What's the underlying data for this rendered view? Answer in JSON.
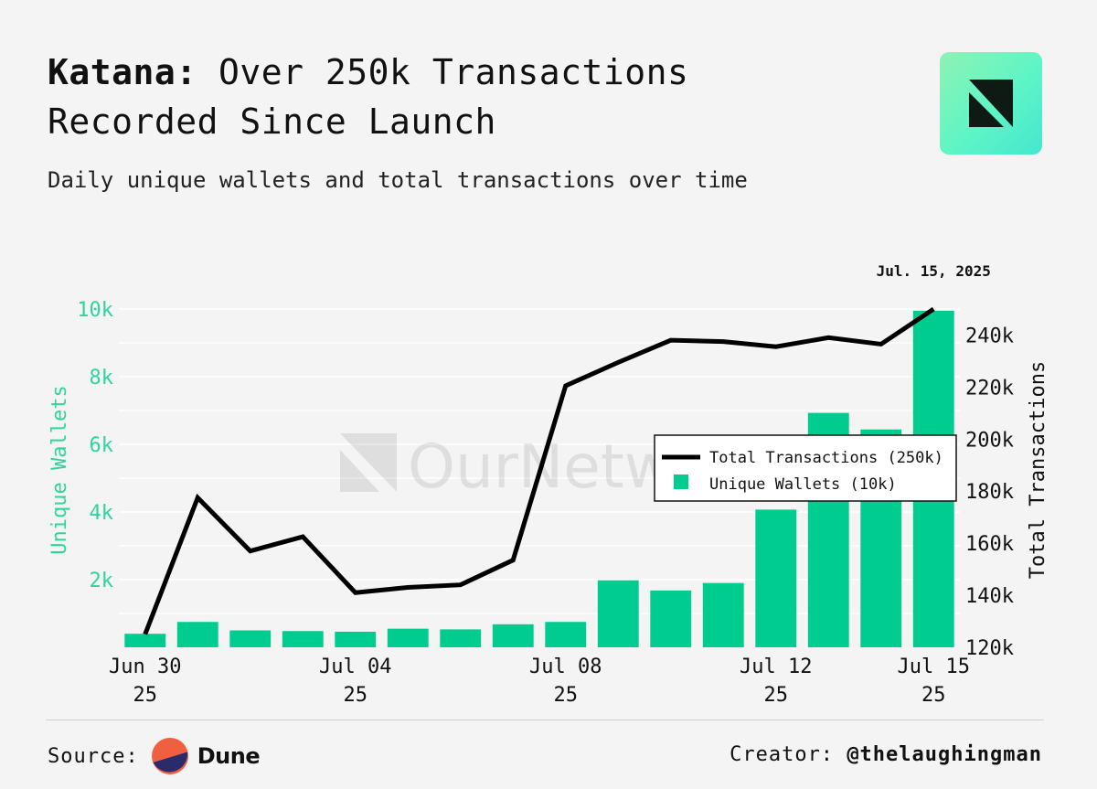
{
  "header": {
    "title_bold": "Katana:",
    "title_rest": " Over 250k Transactions Recorded Since Launch",
    "subtitle": "Daily unique wallets and total transactions over time"
  },
  "footer": {
    "source_label": "Source:",
    "source_name": "Dune",
    "creator_label": "Creator:",
    "creator_handle": "@thelaughingman"
  },
  "watermark": "OurNetwork",
  "chart_data": {
    "type": "bar",
    "x": [
      "Jun 30 25",
      "Jul 01 25",
      "Jul 02 25",
      "Jul 03 25",
      "Jul 04 25",
      "Jul 05 25",
      "Jul 06 25",
      "Jul 07 25",
      "Jul 08 25",
      "Jul 09 25",
      "Jul 10 25",
      "Jul 11 25",
      "Jul 12 25",
      "Jul 13 25",
      "Jul 14 25",
      "Jul 15 25"
    ],
    "x_ticks": [
      {
        "index": 0,
        "line1": "Jun 30",
        "line2": "25"
      },
      {
        "index": 4,
        "line1": "Jul 04",
        "line2": "25"
      },
      {
        "index": 8,
        "line1": "Jul 08",
        "line2": "25"
      },
      {
        "index": 12,
        "line1": "Jul 12",
        "line2": "25"
      },
      {
        "index": 15,
        "line1": "Jul 15",
        "line2": "25"
      }
    ],
    "series": [
      {
        "name": "Unique Wallets (10k)",
        "type": "bar",
        "axis": "left",
        "values": [
          400,
          750,
          500,
          480,
          460,
          550,
          530,
          680,
          750,
          1980,
          1680,
          1900,
          4070,
          6930,
          6440,
          9950
        ]
      },
      {
        "name": "Total Transactions (250k)",
        "type": "line",
        "axis": "right",
        "values": [
          125000,
          177500,
          157000,
          162500,
          141000,
          143000,
          144000,
          153500,
          220500,
          229500,
          238000,
          237500,
          235500,
          239000,
          236500,
          250000
        ]
      }
    ],
    "left_axis": {
      "label": "Unique Wallets",
      "ticks": [
        "2k",
        "4k",
        "6k",
        "8k",
        "10k"
      ],
      "tick_values": [
        2000,
        4000,
        6000,
        8000,
        10000
      ],
      "range": [
        0,
        10000
      ]
    },
    "right_axis": {
      "label": "Total Transactions",
      "ticks": [
        "120k",
        "140k",
        "160k",
        "180k",
        "200k",
        "220k",
        "240k"
      ],
      "tick_values": [
        120000,
        140000,
        160000,
        180000,
        200000,
        220000,
        240000
      ],
      "range": [
        120000,
        250000
      ]
    },
    "annotation": "Jul. 15, 2025",
    "legend_position": "right",
    "grid": true,
    "colors": {
      "bar": "#00cc90",
      "line": "#000000",
      "left_axis_text": "#2ed39f",
      "grid": "#ffffff"
    }
  }
}
